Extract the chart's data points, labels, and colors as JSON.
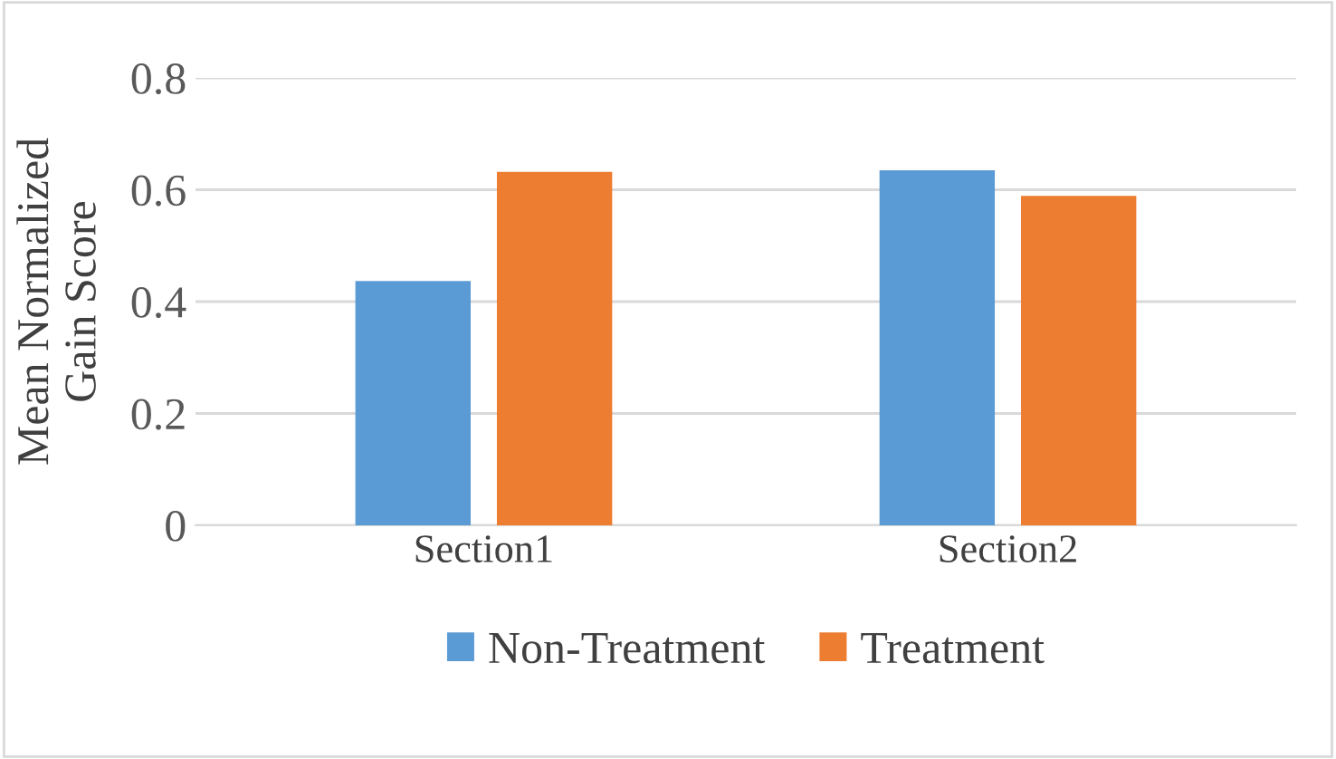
{
  "chart_data": {
    "type": "bar",
    "ylabel": "Mean Normalized\nGain Score",
    "categories": [
      "Section1",
      "Section2"
    ],
    "series": [
      {
        "name": "Non-Treatment",
        "color": "#5b9bd5",
        "values": [
          0.437,
          0.635
        ]
      },
      {
        "name": "Treatment",
        "color": "#ed7d31",
        "values": [
          0.632,
          0.589
        ]
      }
    ],
    "ylim": [
      0,
      0.8
    ],
    "yticks": [
      0,
      0.2,
      0.4,
      0.6,
      0.8
    ],
    "grid": "y",
    "legend": "bottom"
  }
}
